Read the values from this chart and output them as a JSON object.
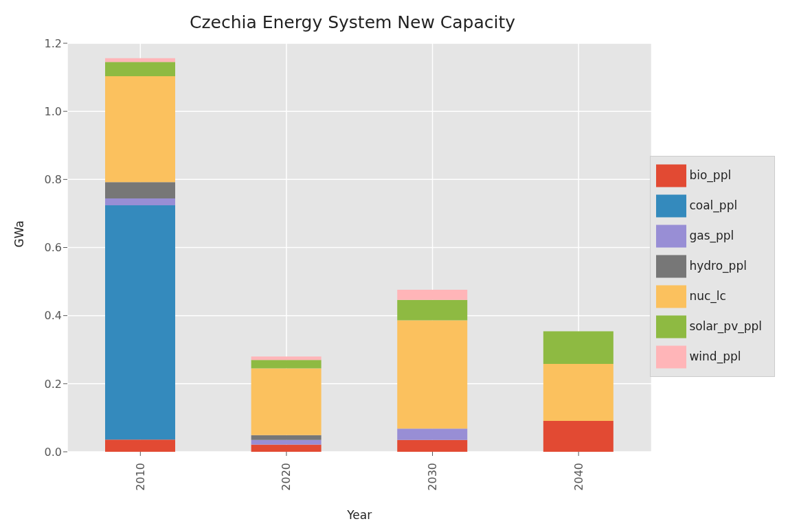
{
  "chart_data": {
    "type": "bar",
    "title": "Czechia Energy System New Capacity",
    "xlabel": "Year",
    "ylabel": "GWa",
    "categories": [
      "2010",
      "2020",
      "2030",
      "2040"
    ],
    "series": [
      {
        "name": "bio_ppl",
        "color": "#e24a33",
        "values": [
          0.036,
          0.021,
          0.035,
          0.091
        ]
      },
      {
        "name": "coal_ppl",
        "color": "#348abd",
        "values": [
          0.688,
          0,
          0,
          0
        ]
      },
      {
        "name": "gas_ppl",
        "color": "#988ed5",
        "values": [
          0.02,
          0.014,
          0.033,
          0
        ]
      },
      {
        "name": "hydro_ppl",
        "color": "#777777",
        "values": [
          0.048,
          0.014,
          0,
          0
        ]
      },
      {
        "name": "nuc_lc",
        "color": "#fbc15e",
        "values": [
          0.311,
          0.196,
          0.318,
          0.167
        ]
      },
      {
        "name": "solar_pv_ppl",
        "color": "#8eba42",
        "values": [
          0.042,
          0.025,
          0.06,
          0.096
        ]
      },
      {
        "name": "wind_ppl",
        "color": "#ffb5b8",
        "values": [
          0.011,
          0.01,
          0.03,
          0
        ]
      }
    ],
    "stacked": true,
    "ylim": [
      0,
      1.2
    ],
    "yticks": [
      {
        "value": 0,
        "label": "0.0"
      },
      {
        "value": 0.2,
        "label": "0.2"
      },
      {
        "value": 0.4,
        "label": "0.4"
      },
      {
        "value": 0.6,
        "label": "0.6"
      },
      {
        "value": 0.8,
        "label": "0.8"
      },
      {
        "value": 1,
        "label": "1.0"
      },
      {
        "value": 1.2,
        "label": "1.2"
      }
    ],
    "grid": true,
    "legend": "right"
  }
}
